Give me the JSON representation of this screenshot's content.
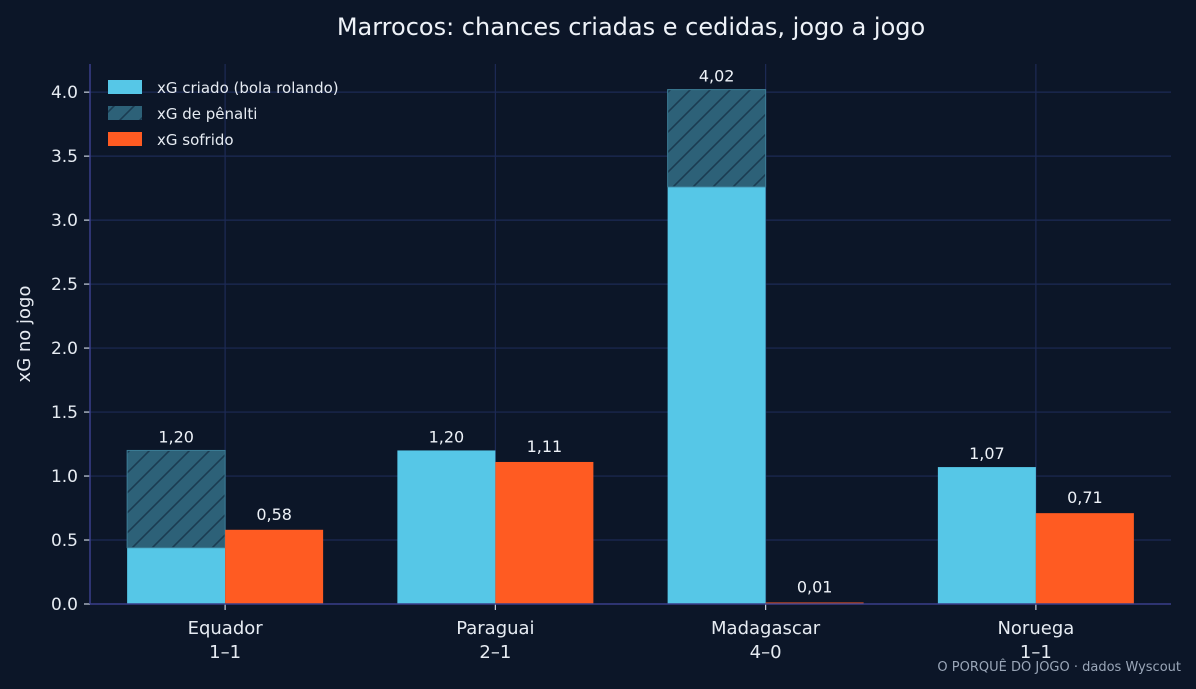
{
  "chart_data": {
    "type": "bar",
    "title": "Marrocos: chances criadas e cedidas, jogo a jogo",
    "ylabel": "xG no jogo",
    "xlabel": "",
    "ylim": [
      0,
      4.22
    ],
    "yticks": [
      "0.0",
      "0.5",
      "1.0",
      "1.5",
      "2.0",
      "2.5",
      "3.0",
      "3.5",
      "4.0"
    ],
    "grid": true,
    "legend_position": "top-left",
    "categories": [
      {
        "name": "Equador",
        "score": "1–1"
      },
      {
        "name": "Paraguai",
        "score": "2–1"
      },
      {
        "name": "Madagascar",
        "score": "4–0"
      },
      {
        "name": "Noruega",
        "score": "1–1"
      }
    ],
    "series": [
      {
        "name": "xG criado (bola rolando)",
        "values": [
          0.44,
          1.2,
          3.26,
          1.07
        ],
        "color": "#56c7e7",
        "stack": "criado"
      },
      {
        "name": "xG de pênalti",
        "values": [
          0.76,
          0.0,
          0.76,
          0.0
        ],
        "color": "#2d6178",
        "hatch": true,
        "stack": "criado"
      },
      {
        "name": "xG sofrido",
        "values": [
          0.58,
          1.11,
          0.01,
          0.71
        ],
        "color": "#ff5b22",
        "stack": "sofrido"
      }
    ],
    "labels_criado": [
      "1,20",
      "1,20",
      "4,02",
      "1,07"
    ],
    "labels_sofrido": [
      "0,58",
      "1,11",
      "0,01",
      "0,71"
    ],
    "source": "O PORQUÊ DO JOGO · dados Wyscout"
  }
}
